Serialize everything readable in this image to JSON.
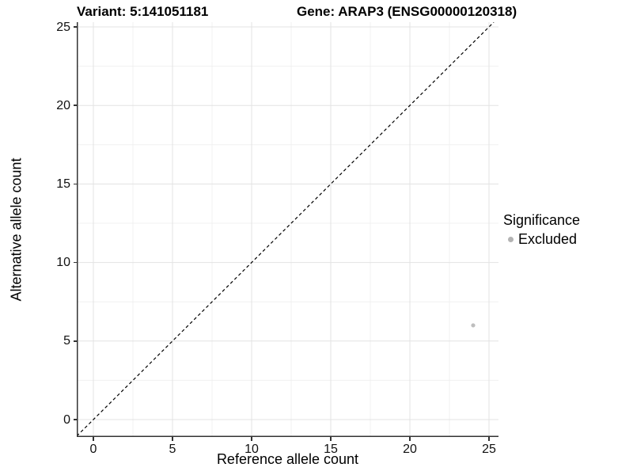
{
  "titles": {
    "variant": "Variant: 5:141051181",
    "gene": "Gene: ARAP3 (ENSG00000120318)"
  },
  "axes": {
    "x_title": "Reference allele count",
    "y_title": "Alternative allele count"
  },
  "legend": {
    "title": "Significance",
    "items": [
      {
        "label": "Excluded",
        "color": "#b3b3b3"
      }
    ]
  },
  "colors": {
    "grid_major": "#e3e3e3",
    "grid_minor": "#f0f0f0",
    "axis_line": "#333333",
    "reference_line": "#000000",
    "point": "#bebebe"
  },
  "chart_data": {
    "type": "scatter",
    "title": "Variant: 5:141051181   Gene: ARAP3 (ENSG00000120318)",
    "xlabel": "Reference allele count",
    "ylabel": "Alternative allele count",
    "x_ticks": [
      0,
      5,
      10,
      15,
      20,
      25
    ],
    "y_ticks": [
      0,
      5,
      10,
      15,
      20,
      25
    ],
    "x_minor_ticks": [
      2.5,
      7.5,
      12.5,
      17.5,
      22.5
    ],
    "y_minor_ticks": [
      2.5,
      7.5,
      12.5,
      17.5,
      22.5
    ],
    "xlim": [
      -1.05,
      25.6
    ],
    "ylim": [
      -1.1,
      25.3
    ],
    "grid": "major+minor",
    "legend_position": "right",
    "legend_title": "Significance",
    "series": [
      {
        "name": "Excluded",
        "color": "#bebebe",
        "points": [
          {
            "x": 24,
            "y": 6
          }
        ]
      }
    ],
    "reference_line": {
      "equation": "y = x",
      "style": "dashed",
      "color": "#000000"
    }
  }
}
